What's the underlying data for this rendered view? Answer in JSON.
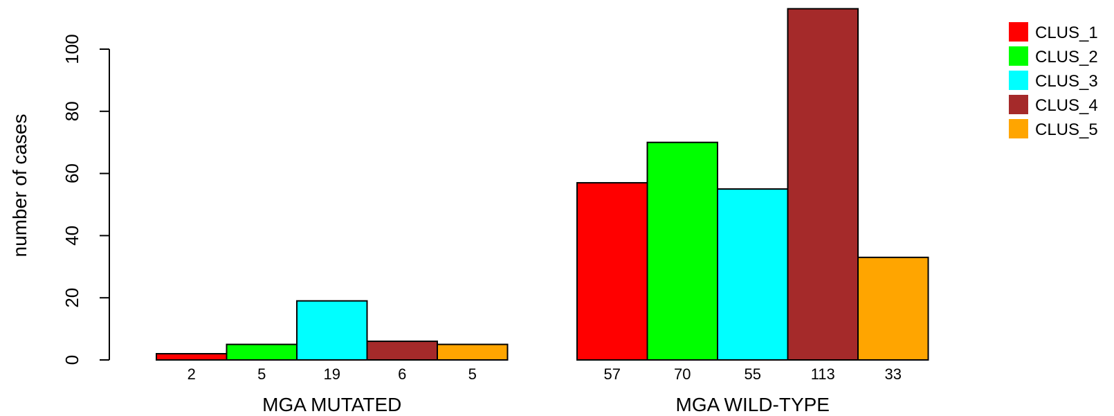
{
  "chart_data": {
    "type": "bar",
    "title": "",
    "xlabel": "",
    "ylabel": "number of cases",
    "ylim": [
      0,
      113
    ],
    "yticks": [
      0,
      20,
      40,
      60,
      80,
      100
    ],
    "grid": false,
    "legend_position": "top-right",
    "categories": [
      "MGA MUTATED",
      "MGA WILD-TYPE"
    ],
    "series": [
      {
        "name": "CLUS_1",
        "color": "#ff0000",
        "values": [
          2,
          57
        ]
      },
      {
        "name": "CLUS_2",
        "color": "#00ff00",
        "values": [
          5,
          70
        ]
      },
      {
        "name": "CLUS_3",
        "color": "#00ffff",
        "values": [
          19,
          55
        ]
      },
      {
        "name": "CLUS_4",
        "color": "#a52a2a",
        "values": [
          6,
          113
        ]
      },
      {
        "name": "CLUS_5",
        "color": "#ffa500",
        "values": [
          5,
          33
        ]
      }
    ]
  }
}
